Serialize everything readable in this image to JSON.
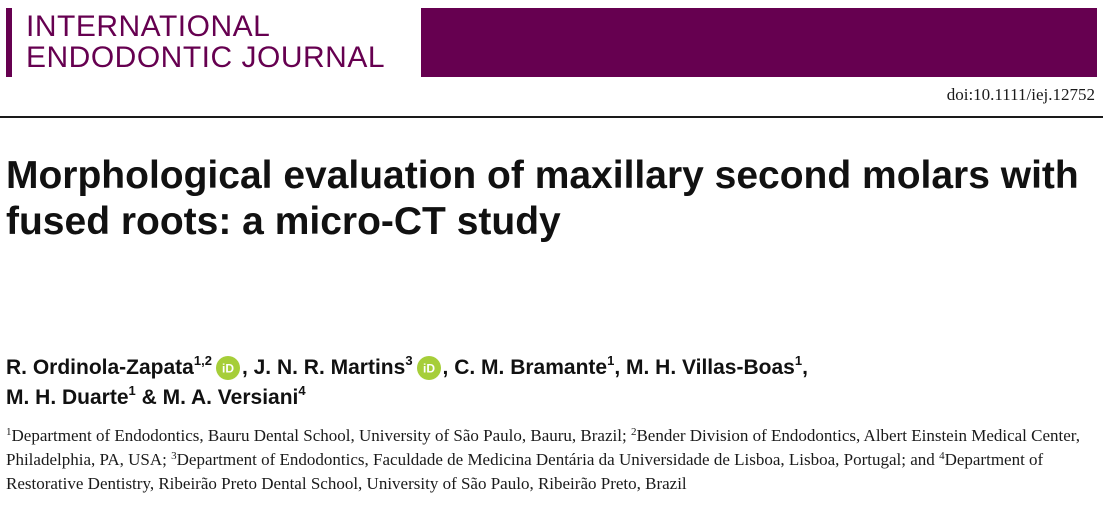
{
  "journal": {
    "name_line1": "INTERNATIONAL",
    "name_line2": "ENDODONTIC JOURNAL",
    "brand_color": "#660050"
  },
  "doi": "doi:10.1111/iej.12752",
  "article": {
    "title": "Morphological evaluation of maxillary second molars with fused roots: a micro-CT study"
  },
  "authors": [
    {
      "name": "R. Ordinola-Zapata",
      "affil": "1,2",
      "orcid": true
    },
    {
      "name": "J. N. R. Martins",
      "affil": "3",
      "orcid": true
    },
    {
      "name": "C. M. Bramante",
      "affil": "1",
      "orcid": false
    },
    {
      "name": "M. H. Villas-Boas",
      "affil": "1",
      "orcid": false
    },
    {
      "name": "M. H. Duarte",
      "affil": "1",
      "orcid": false
    },
    {
      "name": "M. A. Versiani",
      "affil": "4",
      "orcid": false
    }
  ],
  "author_separators": {
    "comma": ", ",
    "amp": " & "
  },
  "orcid_icon": {
    "name": "orcid-icon",
    "label": "iD",
    "color": "#a6ce39"
  },
  "affiliations": [
    {
      "num": "1",
      "text": "Department of Endodontics, Bauru Dental School, University of São Paulo, Bauru, Brazil; "
    },
    {
      "num": "2",
      "text": "Bender Division of Endodontics, Albert Einstein Medical Center, Philadelphia, PA, USA; "
    },
    {
      "num": "3",
      "text": "Department of Endodontics, Faculdade de Medicina Dentária da Universidade de Lisboa, Lisboa, Portugal; and "
    },
    {
      "num": "4",
      "text": "Department of Restorative Dentistry, Ribeirão Preto Dental School, University of São Paulo, Ribeirão Preto, Brazil"
    }
  ]
}
